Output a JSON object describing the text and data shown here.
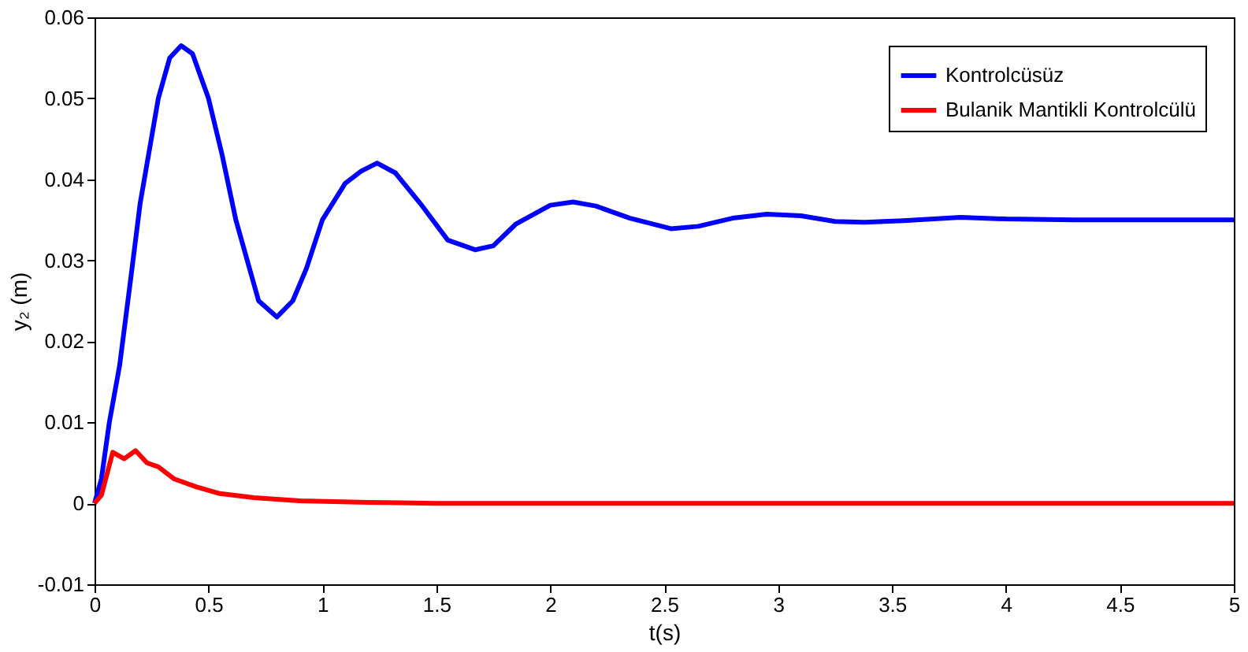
{
  "chart_data": {
    "type": "line",
    "xlabel": "t(s)",
    "ylabel": "y₂ (m)",
    "xlim": [
      0,
      5
    ],
    "xticks": [
      0,
      0.5,
      1,
      1.5,
      2,
      2.5,
      3,
      3.5,
      4,
      4.5,
      5
    ],
    "ylim": [
      -0.01,
      0.06
    ],
    "yticks": [
      -0.01,
      0,
      0.01,
      0.02,
      0.03,
      0.04,
      0.05,
      0.06
    ],
    "grid": false,
    "legend": "top right",
    "marker": "none",
    "line_style": "solid",
    "series": [
      {
        "name": "Kontrolcüsüz",
        "color": "#0000ff",
        "x": [
          0,
          0.03,
          0.065,
          0.11,
          0.16,
          0.2,
          0.28,
          0.33,
          0.38,
          0.43,
          0.5,
          0.56,
          0.62,
          0.72,
          0.8,
          0.87,
          0.93,
          1.0,
          1.1,
          1.17,
          1.24,
          1.32,
          1.43,
          1.55,
          1.67,
          1.75,
          1.85,
          2.0,
          2.1,
          2.2,
          2.35,
          2.53,
          2.65,
          2.8,
          2.95,
          3.1,
          3.25,
          3.38,
          3.55,
          3.8,
          4.0,
          4.3,
          4.6,
          5.0
        ],
        "values": [
          0,
          0.003,
          0.01,
          0.017,
          0.028,
          0.037,
          0.05,
          0.055,
          0.0565,
          0.0555,
          0.05,
          0.043,
          0.035,
          0.025,
          0.023,
          0.025,
          0.029,
          0.035,
          0.0395,
          0.041,
          0.042,
          0.0408,
          0.037,
          0.0325,
          0.0313,
          0.0318,
          0.0345,
          0.0368,
          0.0372,
          0.0367,
          0.0352,
          0.0339,
          0.0342,
          0.0352,
          0.0357,
          0.0355,
          0.0348,
          0.0347,
          0.0349,
          0.0353,
          0.0351,
          0.035,
          0.035,
          0.035
        ]
      },
      {
        "name": "Bulanik Mantikli Kontrolcülü",
        "color": "#ff0000",
        "x": [
          0,
          0.03,
          0.08,
          0.13,
          0.18,
          0.23,
          0.28,
          0.35,
          0.45,
          0.55,
          0.7,
          0.9,
          1.2,
          1.5,
          2.0,
          3.0,
          4.0,
          5.0
        ],
        "values": [
          0,
          0.001,
          0.0063,
          0.0055,
          0.0065,
          0.005,
          0.0045,
          0.003,
          0.002,
          0.0012,
          0.0007,
          0.0003,
          0.0001,
          0,
          0,
          0,
          0,
          0
        ]
      }
    ]
  }
}
